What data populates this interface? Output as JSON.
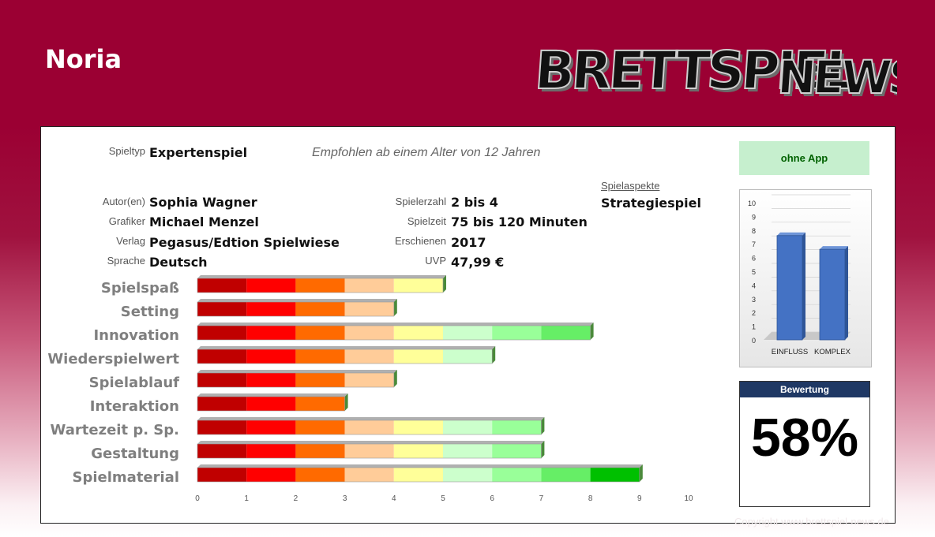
{
  "header": {
    "title": "Noria",
    "logo_text": "BRETTSPIEL NEWS"
  },
  "info": {
    "spieltyp_label": "Spieltyp",
    "spieltyp": "Expertenspiel",
    "age_note": "Empfohlen ab einem Alter von 12 Jahren",
    "autor_label": "Autor(en)",
    "autor": "Sophia Wagner",
    "grafiker_label": "Grafiker",
    "grafiker": "Michael Menzel",
    "verlag_label": "Verlag",
    "verlag": "Pegasus/Edtion Spielwiese",
    "sprache_label": "Sprache",
    "sprache": "Deutsch",
    "spielerzahl_label": "Spielerzahl",
    "spielerzahl": "2 bis 4",
    "spielzeit_label": "Spielzeit",
    "spielzeit": "75 bis 120 Minuten",
    "erschienen_label": "Erschienen",
    "erschienen": "2017",
    "uvp_label": "UVP",
    "uvp": "47,99 €",
    "aspekte_label": "Spielaspekte",
    "aspekte": "Strategiespiel"
  },
  "app_badge": {
    "label": "ohne App",
    "color": "#c6efce",
    "text_color": "#006100"
  },
  "rating": {
    "label": "Bewertung",
    "value": "58%"
  },
  "copyright": "Copyright www.brettspiel-news.de",
  "scale_colors": [
    "#c00000",
    "#ff0000",
    "#ff6a00",
    "#ffcc99",
    "#ffff99",
    "#ccffcc",
    "#99ff99",
    "#66ee66",
    "#00c000",
    "#008000"
  ],
  "chart_data": [
    {
      "type": "bar",
      "orientation": "horizontal",
      "categories": [
        "Spielspaß",
        "Setting",
        "Innovation",
        "Wiederspielwert",
        "Spielablauf",
        "Interaktion",
        "Wartezeit p. Sp.",
        "Gestaltung",
        "Spielmaterial"
      ],
      "values": [
        5,
        4,
        8,
        6,
        4,
        3,
        7,
        7,
        9
      ],
      "xlim": [
        0,
        10
      ],
      "xticks": [
        0,
        1,
        2,
        3,
        4,
        5,
        6,
        7,
        8,
        9,
        10
      ],
      "grid": false
    },
    {
      "type": "bar",
      "categories": [
        "EINFLUSS",
        "KOMPLEX"
      ],
      "values": [
        7.6,
        6.6
      ],
      "ylim": [
        0,
        10
      ],
      "yticks": [
        0,
        1,
        2,
        3,
        4,
        5,
        6,
        7,
        8,
        9,
        10
      ],
      "bar_color": "#4472c4",
      "grid": true
    }
  ]
}
